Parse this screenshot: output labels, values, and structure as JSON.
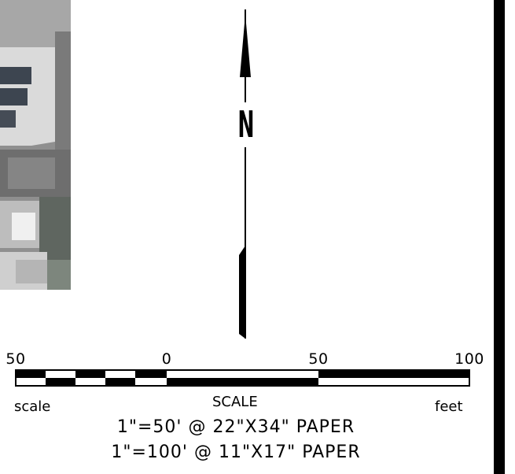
{
  "map": {
    "north_label": "N",
    "scale": {
      "ticks": [
        "50",
        "0",
        "50",
        "100"
      ],
      "left_label": "scale",
      "title": "SCALE",
      "unit": "feet",
      "notes": [
        "1\"=50' @ 22\"X34\" PAPER",
        "1\"=100' @ 11\"X17\" PAPER"
      ]
    },
    "colors": {
      "ink": "#000000",
      "paper": "#ffffff",
      "roof": "#d8d8d8",
      "ground": "#9a9a9a"
    }
  }
}
